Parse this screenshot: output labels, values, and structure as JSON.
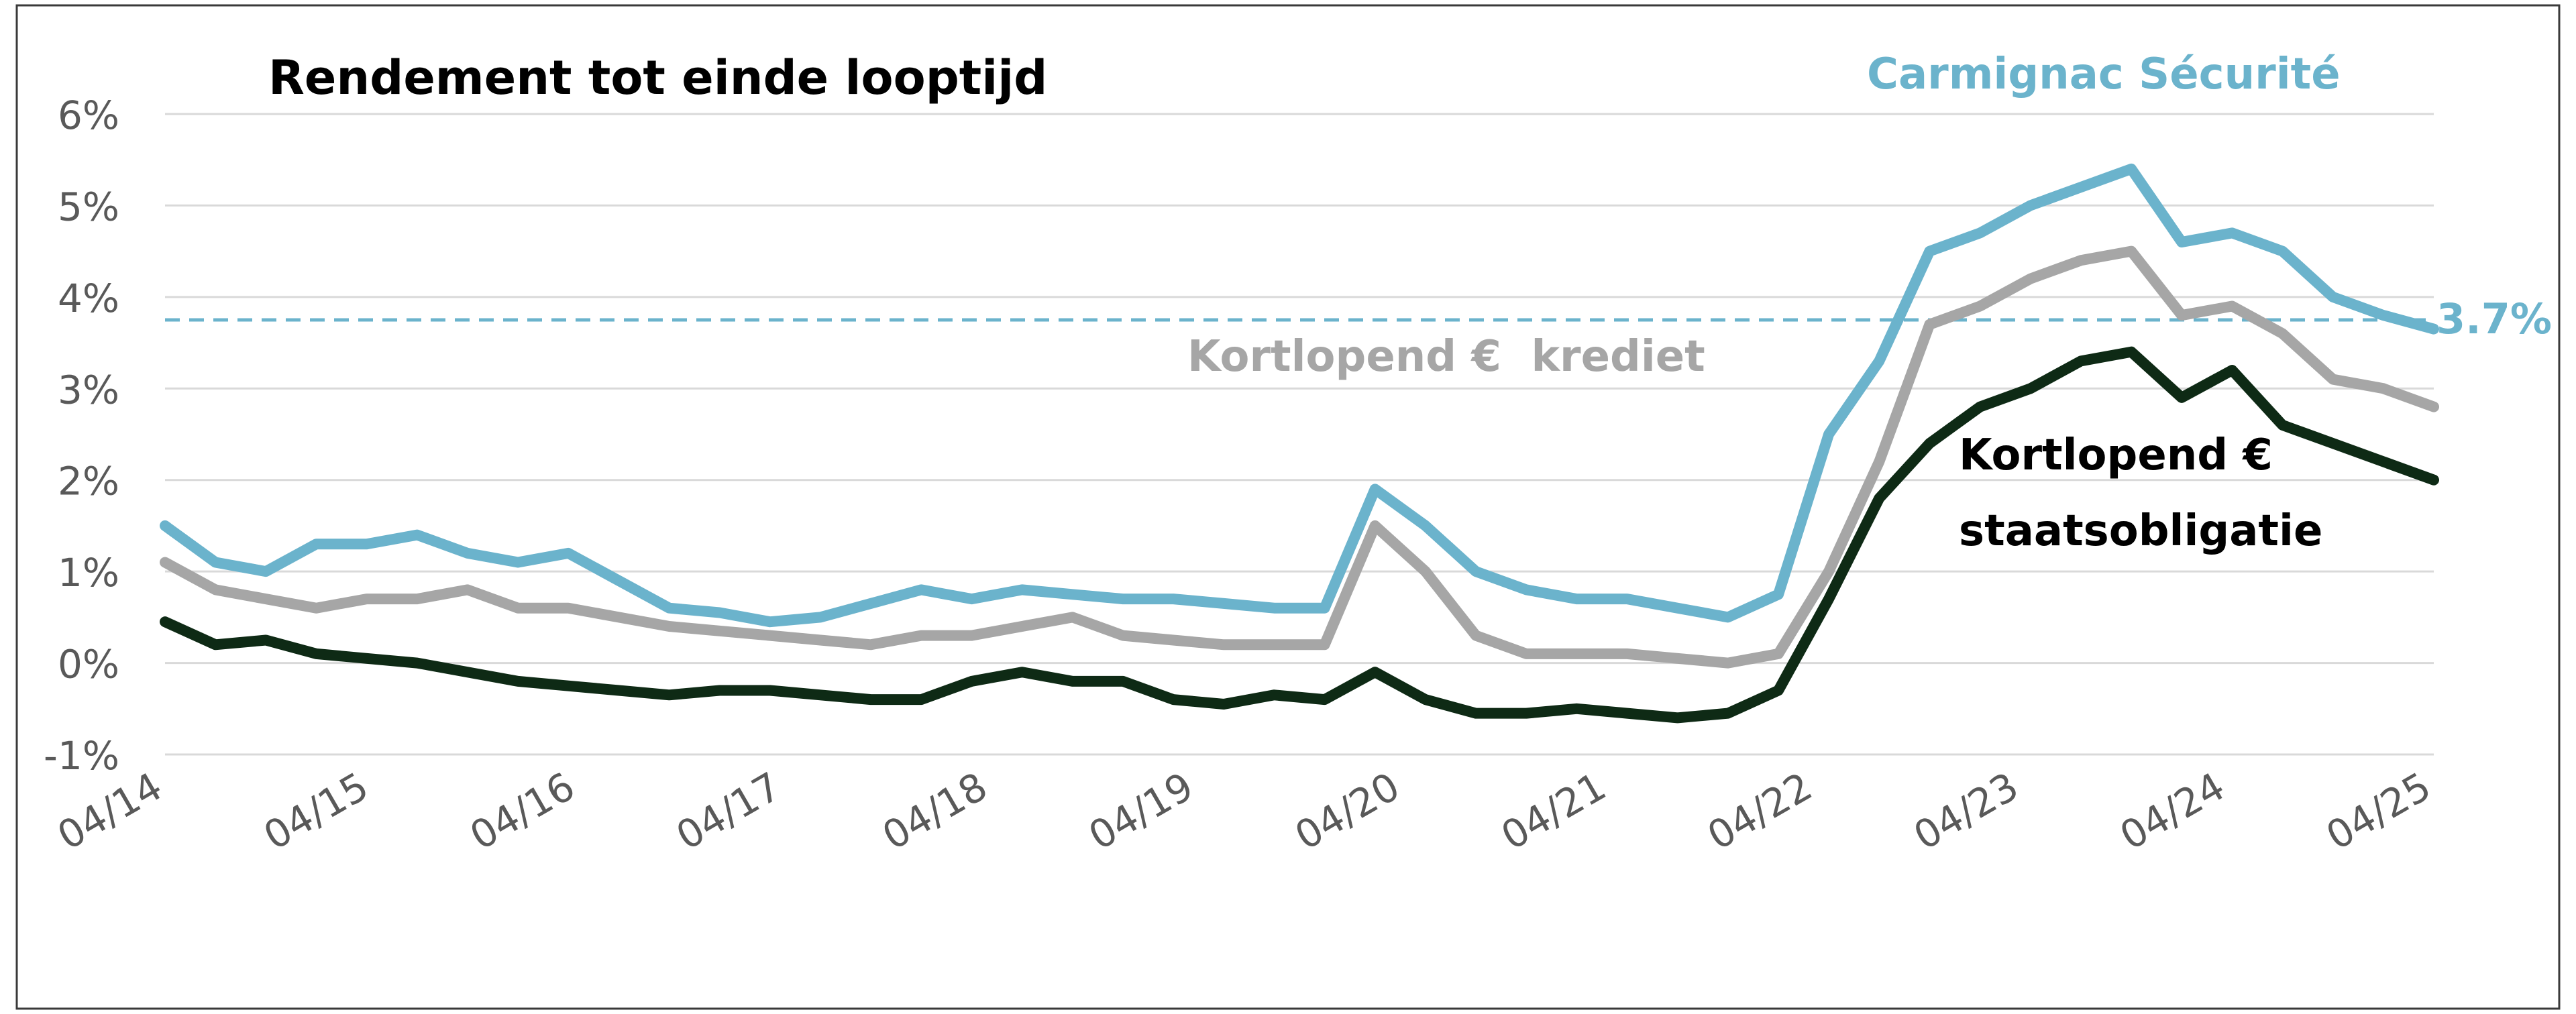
{
  "chart_data": {
    "type": "line",
    "title": "Rendement tot einde looptijd",
    "xlabel": "",
    "ylabel": "",
    "x_ticks": [
      "04/14",
      "04/15",
      "04/16",
      "04/17",
      "04/18",
      "04/19",
      "04/20",
      "04/21",
      "04/22",
      "04/23",
      "04/24",
      "04/25"
    ],
    "y_ticks": [
      "6%",
      "5%",
      "4%",
      "3%",
      "2%",
      "1%",
      "0%",
      "-1%"
    ],
    "ylim": [
      -1,
      6
    ],
    "grid": true,
    "legend": "none",
    "x": [
      "04/14",
      "07/14",
      "10/14",
      "01/15",
      "04/15",
      "07/15",
      "10/15",
      "01/16",
      "04/16",
      "07/16",
      "10/16",
      "01/17",
      "04/17",
      "07/17",
      "10/17",
      "01/18",
      "04/18",
      "07/18",
      "10/18",
      "01/19",
      "04/19",
      "07/19",
      "10/19",
      "01/20",
      "03/20",
      "04/20",
      "07/20",
      "10/20",
      "01/21",
      "04/21",
      "07/21",
      "10/21",
      "01/22",
      "04/22",
      "07/22",
      "10/22",
      "01/23",
      "04/23",
      "07/23",
      "10/23",
      "01/24",
      "04/24",
      "07/24",
      "10/24",
      "01/25",
      "04/25"
    ],
    "series": [
      {
        "name": "Carmignac Sécurité",
        "color": "#6BB3CC",
        "values": [
          1.5,
          1.1,
          1.0,
          1.3,
          1.3,
          1.4,
          1.2,
          1.1,
          1.2,
          0.9,
          0.6,
          0.55,
          0.45,
          0.5,
          0.65,
          0.8,
          0.7,
          0.8,
          0.75,
          0.7,
          0.7,
          0.65,
          0.6,
          0.6,
          1.9,
          1.5,
          1.0,
          0.8,
          0.7,
          0.7,
          0.6,
          0.5,
          0.75,
          2.5,
          3.3,
          4.5,
          4.7,
          5.0,
          5.2,
          5.4,
          4.6,
          4.7,
          4.5,
          4.0,
          3.8,
          3.65
        ]
      },
      {
        "name": "Kortlopend €  krediet",
        "color": "#A6A6A6",
        "values": [
          1.1,
          0.8,
          0.7,
          0.6,
          0.7,
          0.7,
          0.8,
          0.6,
          0.6,
          0.5,
          0.4,
          0.35,
          0.3,
          0.25,
          0.2,
          0.3,
          0.3,
          0.4,
          0.5,
          0.3,
          0.25,
          0.2,
          0.2,
          0.2,
          1.5,
          1.0,
          0.3,
          0.1,
          0.1,
          0.1,
          0.05,
          0.0,
          0.1,
          1.0,
          2.2,
          3.7,
          3.9,
          4.2,
          4.4,
          4.5,
          3.8,
          3.9,
          3.6,
          3.1,
          3.0,
          2.8
        ]
      },
      {
        "name": "Kortlopend € staatsobligatie",
        "color": "#0E2A15",
        "values": [
          0.45,
          0.2,
          0.25,
          0.1,
          0.05,
          0.0,
          -0.1,
          -0.2,
          -0.25,
          -0.3,
          -0.35,
          -0.3,
          -0.3,
          -0.35,
          -0.4,
          -0.4,
          -0.2,
          -0.1,
          -0.2,
          -0.2,
          -0.4,
          -0.45,
          -0.35,
          -0.4,
          -0.1,
          -0.4,
          -0.55,
          -0.55,
          -0.5,
          -0.55,
          -0.6,
          -0.55,
          -0.3,
          0.7,
          1.8,
          2.4,
          2.8,
          3.0,
          3.3,
          3.4,
          2.9,
          3.2,
          2.6,
          2.4,
          2.2,
          2.0
        ]
      }
    ],
    "reference_line": {
      "value": 3.75,
      "label": "3.7%",
      "color": "#6BB3CC",
      "style": "dashed"
    },
    "annotations": [
      {
        "text": "Carmignac Sécurité",
        "color": "#6BB3CC"
      },
      {
        "text": "Kortlopend €  krediet",
        "color": "#A6A6A6"
      },
      {
        "text": "Kortlopend €",
        "color": "#000000"
      },
      {
        "text": "staatsobligatie",
        "color": "#000000"
      }
    ]
  }
}
